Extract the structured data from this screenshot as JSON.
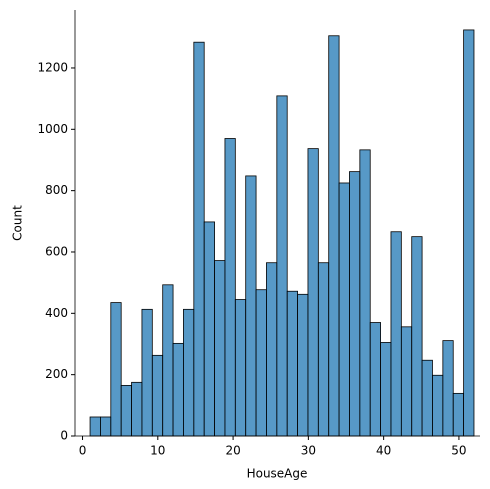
{
  "chart_data": {
    "type": "histogram",
    "xlabel": "HouseAge",
    "ylabel": "Count",
    "bins": [
      1,
      2.378,
      3.757,
      5.135,
      6.514,
      7.892,
      9.27,
      10.649,
      12.027,
      13.405,
      14.784,
      16.162,
      17.541,
      18.919,
      20.297,
      21.676,
      23.054,
      24.432,
      25.811,
      27.189,
      28.568,
      29.946,
      31.324,
      32.703,
      34.081,
      35.459,
      36.838,
      38.216,
      39.595,
      40.973,
      42.351,
      43.73,
      45.108,
      46.486,
      47.865,
      49.243,
      50.622,
      52
    ],
    "values": [
      62,
      62,
      435,
      165,
      175,
      413,
      263,
      493,
      302,
      413,
      1284,
      698,
      572,
      970,
      445,
      848,
      477,
      565,
      1109,
      472,
      462,
      937,
      565,
      1305,
      825,
      862,
      933,
      370,
      305,
      666,
      356,
      650,
      247,
      198,
      311,
      139,
      1324
    ],
    "color": "#1f77b4",
    "edgecolor": "#000000",
    "xlim": [
      -1.0,
      52.8
    ],
    "xticks": [
      0,
      10,
      20,
      30,
      40,
      50
    ],
    "ylim": [
      0,
      1389
    ],
    "yticks": [
      0,
      200,
      400,
      600,
      800,
      1000,
      1200
    ]
  }
}
